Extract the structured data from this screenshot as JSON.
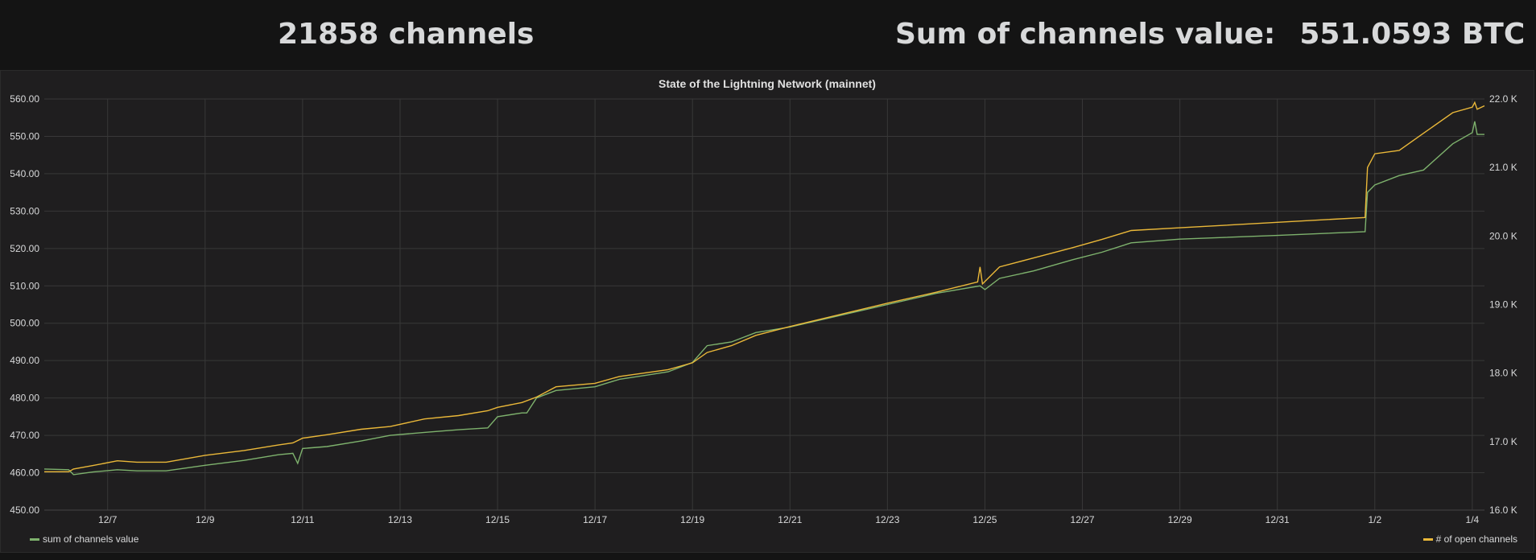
{
  "stats": {
    "channels": "21858 channels",
    "sum_label": "Sum of channels value:",
    "sum_value": "551.0593 BTC"
  },
  "chart_data": {
    "type": "line",
    "title": "State of the Lightning Network (mainnet)",
    "x_ticks": [
      "12/7",
      "12/9",
      "12/11",
      "12/13",
      "12/15",
      "12/17",
      "12/19",
      "12/21",
      "12/23",
      "12/25",
      "12/27",
      "12/29",
      "12/31",
      "1/2",
      "1/4"
    ],
    "x_range_days": [
      5.7,
      35.25
    ],
    "y_left": {
      "ticks": [
        "450.00",
        "460.00",
        "470.00",
        "480.00",
        "490.00",
        "500.00",
        "510.00",
        "520.00",
        "530.00",
        "540.00",
        "550.00",
        "560.00"
      ],
      "range": [
        450,
        560
      ]
    },
    "y_right": {
      "ticks": [
        "16.0 K",
        "17.0 K",
        "18.0 K",
        "19.0 K",
        "20.0 K",
        "21.0 K",
        "22.0 K"
      ],
      "range": [
        16000,
        22000
      ]
    },
    "grid": true,
    "colors": {
      "series1": "#7eb26d",
      "series2": "#eab839",
      "grid": "#383838",
      "text": "#d8d9da"
    },
    "series": [
      {
        "name": "sum of channels value",
        "axis": "left",
        "points": [
          [
            5.7,
            461.0
          ],
          [
            6.2,
            460.8
          ],
          [
            6.3,
            459.5
          ],
          [
            6.7,
            460.2
          ],
          [
            7.2,
            460.8
          ],
          [
            7.6,
            460.5
          ],
          [
            8.2,
            460.5
          ],
          [
            9.0,
            462.0
          ],
          [
            9.8,
            463.3
          ],
          [
            10.5,
            464.8
          ],
          [
            10.8,
            465.2
          ],
          [
            10.9,
            462.5
          ],
          [
            11.0,
            466.5
          ],
          [
            11.5,
            467.0
          ],
          [
            12.2,
            468.5
          ],
          [
            12.8,
            470.0
          ],
          [
            13.5,
            470.8
          ],
          [
            14.2,
            471.5
          ],
          [
            14.8,
            472.0
          ],
          [
            15.0,
            475.0
          ],
          [
            15.5,
            476.0
          ],
          [
            15.6,
            476.0
          ],
          [
            15.8,
            480.0
          ],
          [
            16.2,
            482.0
          ],
          [
            17.0,
            483.0
          ],
          [
            17.5,
            485.0
          ],
          [
            18.0,
            486.0
          ],
          [
            18.5,
            487.0
          ],
          [
            19.0,
            489.5
          ],
          [
            19.3,
            494.0
          ],
          [
            19.8,
            495.0
          ],
          [
            20.3,
            497.5
          ],
          [
            21.0,
            499.0
          ],
          [
            22.0,
            502.0
          ],
          [
            23.0,
            505.0
          ],
          [
            24.0,
            508.0
          ],
          [
            24.9,
            510.0
          ],
          [
            25.0,
            509.0
          ],
          [
            25.3,
            512.0
          ],
          [
            26.0,
            514.0
          ],
          [
            26.8,
            517.0
          ],
          [
            27.4,
            519.0
          ],
          [
            28.0,
            521.5
          ],
          [
            29.0,
            522.5
          ],
          [
            31.0,
            523.5
          ],
          [
            32.8,
            524.5
          ],
          [
            32.85,
            535.0
          ],
          [
            33.0,
            537.0
          ],
          [
            33.5,
            539.5
          ],
          [
            34.0,
            541.0
          ],
          [
            34.6,
            548.0
          ],
          [
            35.0,
            551.0
          ],
          [
            35.05,
            554.0
          ],
          [
            35.1,
            550.5
          ],
          [
            35.25,
            550.5
          ]
        ]
      },
      {
        "name": "# of open channels",
        "axis": "right",
        "points": [
          [
            5.7,
            16.56
          ],
          [
            6.2,
            16.56
          ],
          [
            6.3,
            16.6
          ],
          [
            6.7,
            16.65
          ],
          [
            7.2,
            16.72
          ],
          [
            7.6,
            16.7
          ],
          [
            8.2,
            16.7
          ],
          [
            9.0,
            16.8
          ],
          [
            9.8,
            16.87
          ],
          [
            10.5,
            16.95
          ],
          [
            10.8,
            16.98
          ],
          [
            11.0,
            17.05
          ],
          [
            11.5,
            17.1
          ],
          [
            12.2,
            17.18
          ],
          [
            12.8,
            17.22
          ],
          [
            13.5,
            17.33
          ],
          [
            14.2,
            17.38
          ],
          [
            14.8,
            17.45
          ],
          [
            15.0,
            17.5
          ],
          [
            15.5,
            17.57
          ],
          [
            15.8,
            17.65
          ],
          [
            16.2,
            17.8
          ],
          [
            17.0,
            17.85
          ],
          [
            17.5,
            17.95
          ],
          [
            18.0,
            18.0
          ],
          [
            18.5,
            18.05
          ],
          [
            19.0,
            18.15
          ],
          [
            19.3,
            18.3
          ],
          [
            19.8,
            18.4
          ],
          [
            20.3,
            18.55
          ],
          [
            21.0,
            18.68
          ],
          [
            22.0,
            18.85
          ],
          [
            23.0,
            19.02
          ],
          [
            24.0,
            19.18
          ],
          [
            24.85,
            19.33
          ],
          [
            24.9,
            19.55
          ],
          [
            24.95,
            19.3
          ],
          [
            25.3,
            19.55
          ],
          [
            26.0,
            19.68
          ],
          [
            26.8,
            19.83
          ],
          [
            27.4,
            19.95
          ],
          [
            28.0,
            20.08
          ],
          [
            29.0,
            20.12
          ],
          [
            31.0,
            20.2
          ],
          [
            32.8,
            20.27
          ],
          [
            32.85,
            21.0
          ],
          [
            33.0,
            21.2
          ],
          [
            33.5,
            21.25
          ],
          [
            34.0,
            21.5
          ],
          [
            34.6,
            21.8
          ],
          [
            35.0,
            21.88
          ],
          [
            35.05,
            21.95
          ],
          [
            35.1,
            21.85
          ],
          [
            35.25,
            21.9
          ]
        ]
      }
    ],
    "legend_left": "sum of channels value",
    "legend_right": "# of open channels"
  }
}
